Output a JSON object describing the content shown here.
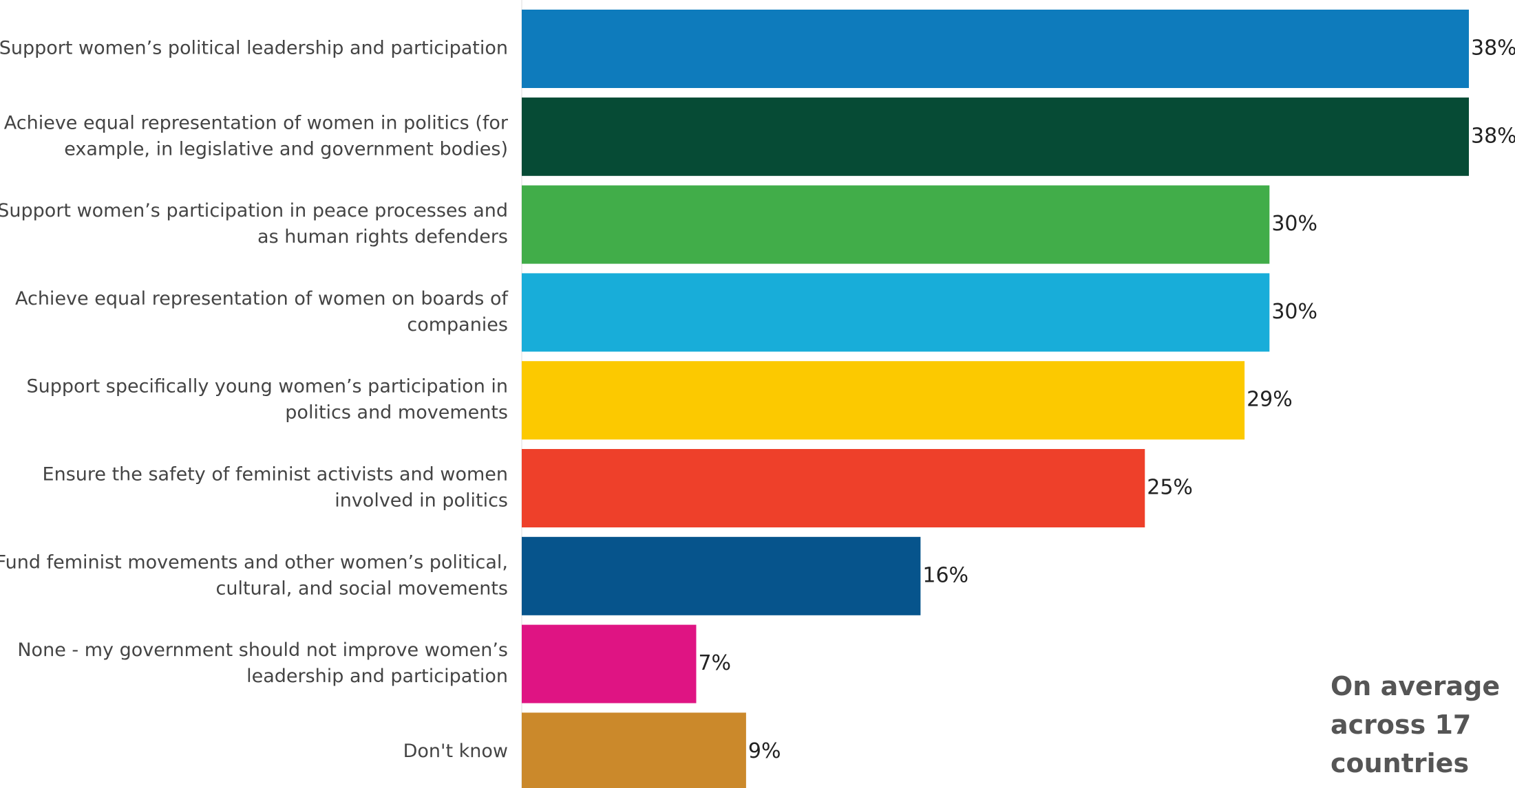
{
  "chart_data": {
    "type": "bar",
    "orientation": "horizontal",
    "categories": [
      [
        "Support women’s political leadership and participation"
      ],
      [
        "Achieve equal representation of women in politics (for",
        "example, in legislative and government bodies)"
      ],
      [
        "Support women’s participation in peace processes and",
        "as human rights defenders"
      ],
      [
        "Achieve equal representation of women on boards of",
        "companies"
      ],
      [
        "Support specifically young women’s participation in",
        "politics and movements"
      ],
      [
        "Ensure the safety of feminist activists and women",
        "involved in politics"
      ],
      [
        "Fund feminist movements and other women’s political,",
        "cultural, and social movements"
      ],
      [
        "None - my government should not improve women’s",
        "leadership and participation"
      ],
      [
        "Don't know"
      ]
    ],
    "values": [
      38,
      38,
      30,
      30,
      29,
      25,
      16,
      7,
      9
    ],
    "value_labels": [
      "38%",
      "38%",
      "30%",
      "30%",
      "29%",
      "25%",
      "16%",
      "7%",
      "9%"
    ],
    "colors": [
      "#0e7bbc",
      "#064b35",
      "#41ad49",
      "#18add9",
      "#fcc900",
      "#ee402a",
      "#06548c",
      "#df1483",
      "#cb892b"
    ],
    "xlim": [
      0,
      38
    ],
    "grid": false,
    "legend": "none",
    "title": "",
    "xlabel": "",
    "ylabel": ""
  },
  "annotation": {
    "lines": [
      "On average",
      "across 17",
      "countries"
    ]
  }
}
